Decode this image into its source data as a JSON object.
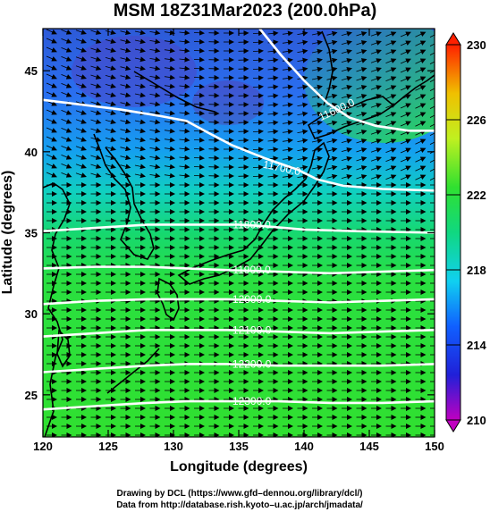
{
  "chart_data": {
    "type": "heatmap",
    "title": "MSM 18Z31Mar2023 (200.0hPa)",
    "xlabel": "Longitude (degrees)",
    "ylabel": "Latitude  (degrees)",
    "xlim": [
      120,
      150
    ],
    "ylim": [
      22.4,
      47.6
    ],
    "x_ticks": [
      "120",
      "125",
      "130",
      "135",
      "140",
      "145",
      "150"
    ],
    "y_ticks": [
      "25",
      "30",
      "35",
      "40",
      "45"
    ],
    "colorbar": {
      "min": 210,
      "max": 230,
      "tick_labels": [
        "210",
        "214",
        "218",
        "222",
        "226",
        "230"
      ],
      "extend": "both"
    },
    "contours": [
      {
        "label": "11600.0",
        "level": 11600,
        "points": [
          [
            136.6,
            47.6
          ],
          [
            138.2,
            46
          ],
          [
            140,
            44.4
          ],
          [
            141.8,
            43
          ],
          [
            143.5,
            42.1
          ],
          [
            145.5,
            41.6
          ],
          [
            148,
            41.3
          ],
          [
            150,
            41.3
          ]
        ]
      },
      {
        "label": "11700.0",
        "level": 11700,
        "points": [
          [
            120,
            43.2
          ],
          [
            123,
            42.9
          ],
          [
            126,
            42.6
          ],
          [
            129,
            42.2
          ],
          [
            131,
            41.9
          ],
          [
            132.6,
            41.2
          ],
          [
            134.5,
            40.4
          ],
          [
            137,
            39.6
          ],
          [
            139.5,
            38.9
          ],
          [
            141,
            38.3
          ],
          [
            143,
            37.9
          ],
          [
            146,
            37.7
          ],
          [
            150,
            37.6
          ]
        ]
      },
      {
        "label": "11800.0",
        "level": 11800,
        "points": [
          [
            120,
            35.1
          ],
          [
            124,
            35.3
          ],
          [
            128,
            35.5
          ],
          [
            132,
            35.5
          ],
          [
            135,
            35.5
          ],
          [
            137,
            35.4
          ],
          [
            140,
            35.2
          ],
          [
            144,
            35.1
          ],
          [
            150,
            35.0
          ]
        ]
      },
      {
        "label": "11900.0",
        "level": 11900,
        "points": [
          [
            120,
            32.8
          ],
          [
            124,
            32.9
          ],
          [
            128,
            32.9
          ],
          [
            131,
            32.8
          ],
          [
            134,
            32.7
          ],
          [
            138,
            32.6
          ],
          [
            142,
            32.5
          ],
          [
            146,
            32.6
          ],
          [
            150,
            32.7
          ]
        ]
      },
      {
        "label": "12000.0",
        "level": 12000,
        "points": [
          [
            120,
            30.6
          ],
          [
            124,
            30.8
          ],
          [
            128,
            30.9
          ],
          [
            131,
            30.9
          ],
          [
            134,
            30.9
          ],
          [
            138,
            30.8
          ],
          [
            142,
            30.7
          ],
          [
            146,
            30.8
          ],
          [
            150,
            30.9
          ]
        ]
      },
      {
        "label": "12100.0",
        "level": 12100,
        "points": [
          [
            120,
            28.6
          ],
          [
            124,
            28.8
          ],
          [
            128,
            29.0
          ],
          [
            131,
            29.0
          ],
          [
            134,
            29.0
          ],
          [
            138,
            28.9
          ],
          [
            142,
            28.8
          ],
          [
            146,
            28.9
          ],
          [
            150,
            29.0
          ]
        ]
      },
      {
        "label": "12200.0",
        "level": 12200,
        "points": [
          [
            120,
            26.4
          ],
          [
            124,
            26.6
          ],
          [
            128,
            26.8
          ],
          [
            131,
            26.9
          ],
          [
            134,
            26.9
          ],
          [
            138,
            26.8
          ],
          [
            142,
            26.8
          ],
          [
            146,
            26.8
          ],
          [
            150,
            26.9
          ]
        ]
      },
      {
        "label": "12300.0",
        "level": 12300,
        "points": [
          [
            120,
            24.1
          ],
          [
            124,
            24.3
          ],
          [
            128,
            24.5
          ],
          [
            131,
            24.6
          ],
          [
            134,
            24.6
          ],
          [
            138,
            24.6
          ],
          [
            142,
            24.5
          ],
          [
            146,
            24.5
          ],
          [
            150,
            24.6
          ]
        ]
      }
    ]
  },
  "credits": {
    "line1": "Drawing by DCL (https://www.gfd–dennou.org/library/dcl/)",
    "line2": "Data from http://database.rish.kyoto–u.ac.jp/arch/jmadata/"
  }
}
